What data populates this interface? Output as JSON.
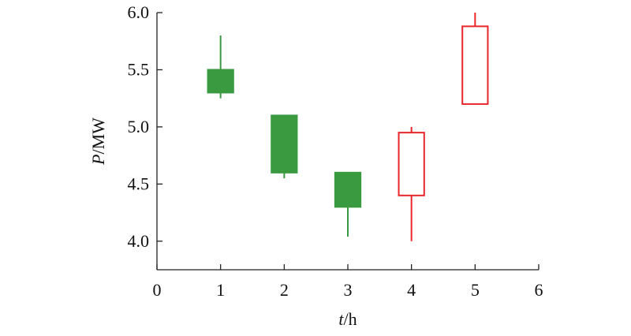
{
  "chart_data": {
    "type": "candlestick",
    "xlabel_var": "t",
    "xlabel_unit": "/h",
    "ylabel_var": "P",
    "ylabel_unit": "/MW",
    "xlim": [
      0,
      6
    ],
    "ylim": [
      3.75,
      6.0
    ],
    "x_ticks": [
      0,
      1,
      2,
      3,
      4,
      5,
      6
    ],
    "x_tick_labels": [
      "0",
      "1",
      "2",
      "3",
      "4",
      "5",
      "6"
    ],
    "y_ticks": [
      4.0,
      4.5,
      5.0,
      5.5,
      6.0
    ],
    "y_tick_labels": [
      "4.0",
      "4.5",
      "5.0",
      "5.5",
      "6.0"
    ],
    "grid": false,
    "colors": {
      "decrease": "#3a9a3f",
      "increase": "#e8262b",
      "axis": "#222222"
    },
    "candles": [
      {
        "x": 1,
        "open": 5.5,
        "close": 5.3,
        "high": 5.8,
        "low": 5.25,
        "direction": "decrease"
      },
      {
        "x": 2,
        "open": 5.1,
        "close": 4.6,
        "high": 5.1,
        "low": 4.55,
        "direction": "decrease"
      },
      {
        "x": 3,
        "open": 4.6,
        "close": 4.3,
        "high": 4.6,
        "low": 4.04,
        "direction": "decrease"
      },
      {
        "x": 4,
        "open": 4.4,
        "close": 4.95,
        "high": 5.0,
        "low": 4.0,
        "direction": "increase"
      },
      {
        "x": 5,
        "open": 5.2,
        "close": 5.88,
        "high": 6.0,
        "low": 5.2,
        "direction": "increase"
      }
    ]
  }
}
